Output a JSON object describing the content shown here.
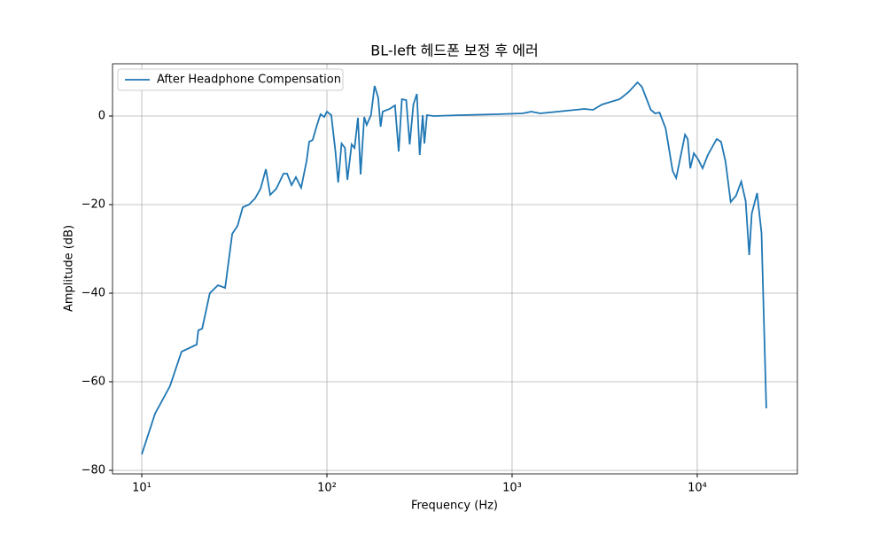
{
  "chart_data": {
    "type": "line",
    "title": "BL-left 헤드폰 보정 후 에러",
    "x_label": "Frequency (Hz)",
    "y_label": "Amplitude (dB)",
    "x_scale": "log",
    "grid": true,
    "legend": "upper left",
    "xlim": [
      6.95,
      34750
    ],
    "ylim": [
      -80.8,
      11.8
    ],
    "xticks": [
      {
        "value": 10,
        "label": "10¹"
      },
      {
        "value": 100,
        "label": "10²"
      },
      {
        "value": 1000,
        "label": "10³"
      },
      {
        "value": 10000,
        "label": "10⁴"
      }
    ],
    "yticks": [
      0,
      {
        "value": -20,
        "label": "−20"
      },
      {
        "value": -40,
        "label": "−40"
      },
      {
        "value": -60,
        "label": "−60"
      },
      {
        "value": -80,
        "label": "−80"
      }
    ],
    "x": [
      10,
      11.8,
      14.2,
      16.4,
      19.8,
      20.2,
      21.2,
      23.3,
      25.8,
      28.2,
      30.8,
      32.9,
      35.1,
      37.9,
      40.9,
      43.8,
      46.8,
      49.4,
      53.3,
      58.3,
      60.9,
      64.4,
      68,
      72.6,
      77.6,
      80.2,
      83.7,
      88.4,
      92.4,
      96.7,
      100,
      105.6,
      111,
      115,
      120,
      125,
      129,
      136,
      141,
      147,
      152,
      159,
      164,
      173,
      181,
      189,
      195,
      200,
      218,
      233,
      244,
      254,
      268,
      280,
      293,
      306,
      317,
      329,
      336,
      347,
      378,
      527,
      822,
      1139,
      1270,
      1418,
      1972,
      2450,
      2737,
      3058,
      3810,
      4256,
      4755,
      5023,
      5609,
      5925,
      6259,
      6753,
      7366,
      7696,
      8597,
      8881,
      9174,
      9584,
      10117,
      10686,
      11402,
      12731,
      13447,
      14200,
      15160,
      16190,
      17290,
      18260,
      19080,
      19710,
      21040,
      22230,
      23600
    ],
    "series": [
      {
        "name": "After Headphone Compensation",
        "color": "#1f77b4",
        "values": [
          -76.4,
          -67.2,
          -61,
          -53.2,
          -51.6,
          -48.4,
          -48,
          -40,
          -38.2,
          -38.8,
          -26.6,
          -24.8,
          -20.6,
          -20,
          -18.6,
          -16.4,
          -12,
          -17.8,
          -16.4,
          -13,
          -13,
          -15.6,
          -13.8,
          -16.2,
          -10.2,
          -5.8,
          -5.4,
          -2,
          0.4,
          -0.2,
          1,
          0.2,
          -7.8,
          -15,
          -6.2,
          -7.2,
          -14.4,
          -6.4,
          -7.2,
          -0.4,
          -13.2,
          -0.2,
          -2,
          0.2,
          6.8,
          4.2,
          -2.4,
          1,
          1.6,
          2.4,
          -8,
          3.8,
          3.6,
          -6.4,
          2.6,
          5,
          -8.8,
          0.2,
          -6.2,
          0.2,
          0,
          0.2,
          0.4,
          0.6,
          1,
          0.6,
          1.2,
          1.6,
          1.4,
          2.6,
          3.8,
          5.4,
          7.6,
          6.6,
          1.4,
          0.6,
          0.8,
          -2.8,
          -12.4,
          -14,
          -4.2,
          -5.2,
          -11.8,
          -8.4,
          -9.8,
          -11.8,
          -8.8,
          -5.2,
          -5.8,
          -10.2,
          -19.4,
          -18,
          -14.8,
          -19.2,
          -31.4,
          -22,
          -17.4,
          -26.4,
          -66
        ]
      }
    ]
  }
}
